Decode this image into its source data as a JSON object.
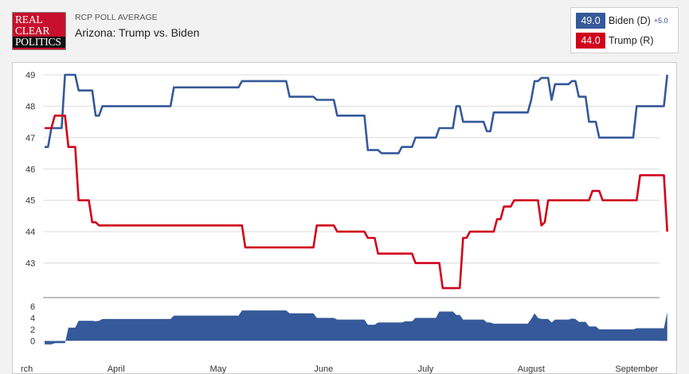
{
  "header": {
    "logo_lines": [
      "REAL",
      "CLEAR",
      "POLITICS"
    ],
    "kicker": "RCP POLL AVERAGE",
    "title": "Arizona: Trump vs. Biden"
  },
  "legend": {
    "biden": {
      "value": "49.0",
      "name": "Biden (D)",
      "spread": "+5.0",
      "color": "#35599a"
    },
    "trump": {
      "value": "44.0",
      "name": "Trump (R)",
      "color": "#d0021b"
    }
  },
  "chart_data": {
    "type": "line",
    "title": "Arizona: Trump vs. Biden",
    "x_unit": "day of year (2020)",
    "xlim": [
      71,
      252
    ],
    "ylim": [
      42,
      49
    ],
    "yticks": [
      43,
      44,
      45,
      46,
      47,
      48,
      49
    ],
    "months": [
      {
        "label": "rch",
        "day": 61
      },
      {
        "label": "April",
        "day": 92
      },
      {
        "label": "May",
        "day": 122
      },
      {
        "label": "June",
        "day": 153
      },
      {
        "label": "July",
        "day": 183
      },
      {
        "label": "August",
        "day": 214
      },
      {
        "label": "September",
        "day": 245
      }
    ],
    "series": [
      {
        "name": "Biden (D)",
        "color": "#35599a",
        "points": [
          [
            71,
            46.7
          ],
          [
            72,
            46.7
          ],
          [
            73,
            47.3
          ],
          [
            76,
            47.3
          ],
          [
            77,
            49
          ],
          [
            80,
            49
          ],
          [
            81,
            48.5
          ],
          [
            85,
            48.5
          ],
          [
            86,
            47.7
          ],
          [
            87,
            47.7
          ],
          [
            88,
            48
          ],
          [
            108,
            48
          ],
          [
            109,
            48.6
          ],
          [
            128,
            48.6
          ],
          [
            129,
            48.8
          ],
          [
            142,
            48.8
          ],
          [
            143,
            48.3
          ],
          [
            150,
            48.3
          ],
          [
            151,
            48.2
          ],
          [
            156,
            48.2
          ],
          [
            157,
            47.7
          ],
          [
            165,
            47.7
          ],
          [
            166,
            46.6
          ],
          [
            169,
            46.6
          ],
          [
            170,
            46.5
          ],
          [
            175,
            46.5
          ],
          [
            176,
            46.7
          ],
          [
            179,
            46.7
          ],
          [
            180,
            47
          ],
          [
            186,
            47
          ],
          [
            187,
            47.3
          ],
          [
            191,
            47.3
          ],
          [
            192,
            48
          ],
          [
            193,
            48
          ],
          [
            194,
            47.5
          ],
          [
            200,
            47.5
          ],
          [
            201,
            47.2
          ],
          [
            202,
            47.2
          ],
          [
            203,
            47.8
          ],
          [
            213,
            47.8
          ],
          [
            214,
            48.2
          ],
          [
            215,
            48.8
          ],
          [
            216,
            48.8
          ],
          [
            217,
            48.9
          ],
          [
            219,
            48.9
          ],
          [
            220,
            48.2
          ],
          [
            221,
            48.7
          ],
          [
            225,
            48.7
          ],
          [
            226,
            48.8
          ],
          [
            227,
            48.8
          ],
          [
            228,
            48.3
          ],
          [
            230,
            48.3
          ],
          [
            231,
            47.5
          ],
          [
            233,
            47.5
          ],
          [
            234,
            47
          ],
          [
            244,
            47
          ],
          [
            245,
            48
          ],
          [
            253,
            48
          ],
          [
            254,
            49
          ]
        ]
      },
      {
        "name": "Trump (R)",
        "color": "#d0021b",
        "points": [
          [
            71,
            47.3
          ],
          [
            73,
            47.3
          ],
          [
            74,
            47.7
          ],
          [
            77,
            47.7
          ],
          [
            78,
            46.7
          ],
          [
            80,
            46.7
          ],
          [
            81,
            45
          ],
          [
            84,
            45
          ],
          [
            85,
            44.3
          ],
          [
            86,
            44.3
          ],
          [
            87,
            44.2
          ],
          [
            129,
            44.2
          ],
          [
            130,
            43.5
          ],
          [
            150,
            43.5
          ],
          [
            151,
            44.2
          ],
          [
            156,
            44.2
          ],
          [
            157,
            44
          ],
          [
            165,
            44
          ],
          [
            166,
            43.8
          ],
          [
            168,
            43.8
          ],
          [
            169,
            43.3
          ],
          [
            179,
            43.3
          ],
          [
            180,
            43
          ],
          [
            187,
            43
          ],
          [
            188,
            42.2
          ],
          [
            193,
            42.2
          ],
          [
            194,
            43.8
          ],
          [
            195,
            43.8
          ],
          [
            196,
            44
          ],
          [
            203,
            44
          ],
          [
            204,
            44.4
          ],
          [
            205,
            44.4
          ],
          [
            206,
            44.8
          ],
          [
            208,
            44.8
          ],
          [
            209,
            45
          ],
          [
            216,
            45
          ],
          [
            217,
            44.2
          ],
          [
            218,
            44.3
          ],
          [
            219,
            45
          ],
          [
            231,
            45
          ],
          [
            232,
            45.3
          ],
          [
            234,
            45.3
          ],
          [
            235,
            45
          ],
          [
            245,
            45
          ],
          [
            246,
            45.8
          ],
          [
            253,
            45.8
          ],
          [
            254,
            44
          ]
        ]
      },
      {
        "name": "Spread",
        "type": "area",
        "color": "#35599a",
        "ylim": [
          -0.5,
          6
        ],
        "yticks": [
          0,
          2,
          4,
          6
        ],
        "points": [
          [
            71,
            -0.6
          ],
          [
            73,
            -0.6
          ],
          [
            74,
            -0.4
          ],
          [
            77,
            -0.4
          ],
          [
            78,
            2.3
          ],
          [
            80,
            2.3
          ],
          [
            81,
            3.5
          ],
          [
            85,
            3.5
          ],
          [
            86,
            3.4
          ],
          [
            87,
            3.5
          ],
          [
            88,
            3.8
          ],
          [
            108,
            3.8
          ],
          [
            109,
            4.4
          ],
          [
            128,
            4.4
          ],
          [
            129,
            5.3
          ],
          [
            142,
            5.3
          ],
          [
            143,
            4.8
          ],
          [
            150,
            4.8
          ],
          [
            151,
            4
          ],
          [
            156,
            4
          ],
          [
            157,
            3.7
          ],
          [
            165,
            3.7
          ],
          [
            166,
            2.8
          ],
          [
            168,
            2.8
          ],
          [
            169,
            3.2
          ],
          [
            176,
            3.2
          ],
          [
            177,
            3.4
          ],
          [
            179,
            3.4
          ],
          [
            180,
            4
          ],
          [
            186,
            4
          ],
          [
            187,
            5.1
          ],
          [
            191,
            5.1
          ],
          [
            192,
            4.5
          ],
          [
            193,
            4.5
          ],
          [
            194,
            3.7
          ],
          [
            200,
            3.7
          ],
          [
            201,
            3.2
          ],
          [
            202,
            3.2
          ],
          [
            203,
            3
          ],
          [
            213,
            3
          ],
          [
            214,
            3.8
          ],
          [
            215,
            4.8
          ],
          [
            216,
            4
          ],
          [
            217,
            3.8
          ],
          [
            219,
            3.8
          ],
          [
            220,
            3.2
          ],
          [
            221,
            3.7
          ],
          [
            225,
            3.7
          ],
          [
            226,
            3.9
          ],
          [
            227,
            3.8
          ],
          [
            228,
            3.3
          ],
          [
            230,
            3.3
          ],
          [
            231,
            2.5
          ],
          [
            233,
            2.5
          ],
          [
            234,
            2
          ],
          [
            244,
            2
          ],
          [
            245,
            2.2
          ],
          [
            253,
            2.2
          ],
          [
            254,
            5
          ]
        ]
      }
    ]
  }
}
